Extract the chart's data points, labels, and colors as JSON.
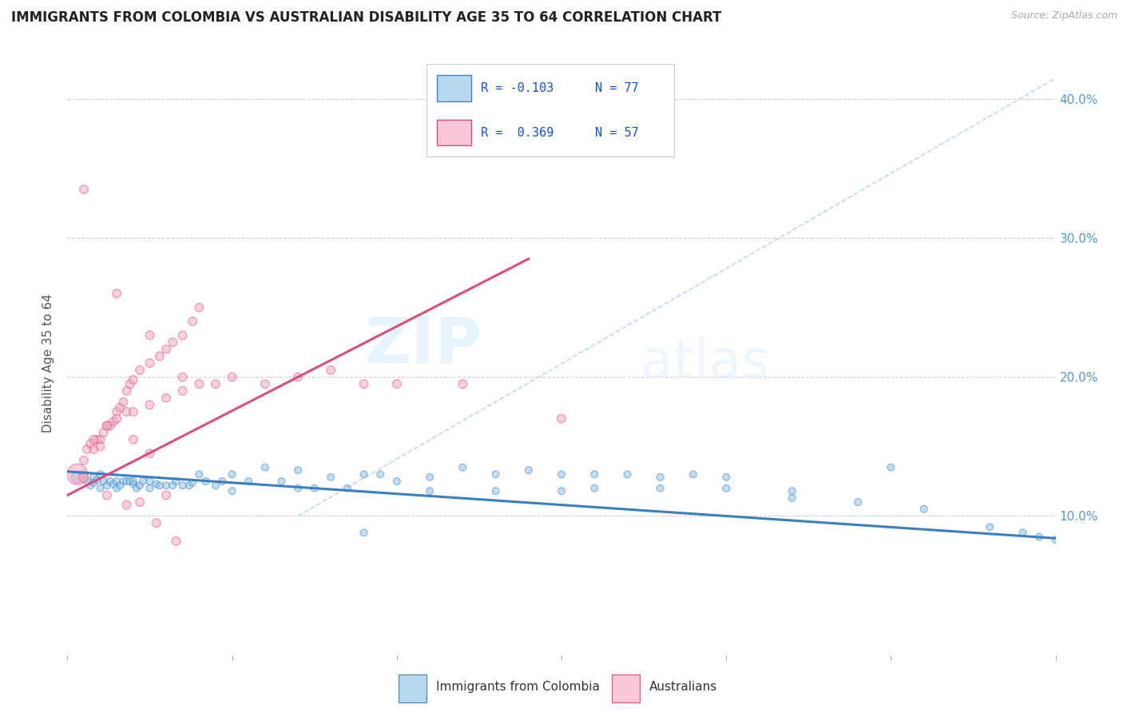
{
  "title": "IMMIGRANTS FROM COLOMBIA VS AUSTRALIAN DISABILITY AGE 35 TO 64 CORRELATION CHART",
  "source_text": "Source: ZipAtlas.com",
  "ylabel": "Disability Age 35 to 64",
  "xlim": [
    0.0,
    0.3
  ],
  "ylim": [
    0.0,
    0.42
  ],
  "color_blue": "#8ec4e8",
  "color_pink": "#f4a8be",
  "color_blue_line": "#3a7fc1",
  "color_pink_line": "#d94f7a",
  "color_blue_legend": "#b8d8f0",
  "color_pink_legend": "#f9c8d8",
  "watermark_zip": "ZIP",
  "watermark_atlas": "atlas",
  "legend_blue_label": "Immigrants from Colombia",
  "legend_pink_label": "Australians",
  "blue_line_x": [
    0.0,
    0.3
  ],
  "blue_line_y": [
    0.132,
    0.084
  ],
  "pink_line_x": [
    0.0,
    0.14
  ],
  "pink_line_y": [
    0.115,
    0.285
  ],
  "dashed_line_x": [
    0.07,
    0.3
  ],
  "dashed_line_y": [
    0.1,
    0.415
  ],
  "blue_x": [
    0.003,
    0.005,
    0.006,
    0.007,
    0.008,
    0.008,
    0.009,
    0.01,
    0.01,
    0.011,
    0.012,
    0.013,
    0.014,
    0.015,
    0.015,
    0.016,
    0.017,
    0.018,
    0.019,
    0.02,
    0.02,
    0.021,
    0.022,
    0.023,
    0.025,
    0.025,
    0.027,
    0.028,
    0.03,
    0.032,
    0.033,
    0.035,
    0.037,
    0.038,
    0.04,
    0.042,
    0.045,
    0.047,
    0.05,
    0.055,
    0.06,
    0.065,
    0.07,
    0.075,
    0.08,
    0.085,
    0.09,
    0.095,
    0.1,
    0.11,
    0.12,
    0.13,
    0.14,
    0.15,
    0.16,
    0.17,
    0.18,
    0.19,
    0.2,
    0.22,
    0.25,
    0.16,
    0.18,
    0.2,
    0.22,
    0.24,
    0.26,
    0.28,
    0.29,
    0.295,
    0.3,
    0.05,
    0.07,
    0.09,
    0.11,
    0.13,
    0.15
  ],
  "blue_y": [
    0.128,
    0.13,
    0.125,
    0.122,
    0.128,
    0.124,
    0.126,
    0.12,
    0.13,
    0.125,
    0.122,
    0.125,
    0.123,
    0.125,
    0.12,
    0.122,
    0.125,
    0.125,
    0.125,
    0.123,
    0.125,
    0.12,
    0.122,
    0.125,
    0.12,
    0.125,
    0.123,
    0.122,
    0.122,
    0.122,
    0.125,
    0.122,
    0.122,
    0.124,
    0.13,
    0.125,
    0.122,
    0.125,
    0.13,
    0.125,
    0.135,
    0.125,
    0.133,
    0.12,
    0.128,
    0.12,
    0.13,
    0.13,
    0.125,
    0.128,
    0.135,
    0.13,
    0.133,
    0.13,
    0.13,
    0.13,
    0.128,
    0.13,
    0.128,
    0.118,
    0.135,
    0.12,
    0.12,
    0.12,
    0.113,
    0.11,
    0.105,
    0.092,
    0.088,
    0.085,
    0.083,
    0.118,
    0.12,
    0.088,
    0.118,
    0.118,
    0.118
  ],
  "blue_sizes": [
    120,
    40,
    40,
    40,
    40,
    40,
    40,
    40,
    40,
    40,
    40,
    40,
    40,
    40,
    40,
    40,
    40,
    40,
    40,
    40,
    40,
    40,
    40,
    40,
    40,
    40,
    40,
    40,
    40,
    40,
    40,
    40,
    40,
    40,
    40,
    40,
    40,
    40,
    40,
    40,
    40,
    40,
    40,
    40,
    40,
    40,
    40,
    40,
    40,
    40,
    40,
    40,
    40,
    40,
    40,
    40,
    40,
    40,
    40,
    40,
    40,
    40,
    40,
    40,
    40,
    40,
    40,
    40,
    40,
    40,
    40,
    40,
    40,
    40,
    40,
    40,
    40
  ],
  "pink_x": [
    0.003,
    0.005,
    0.006,
    0.007,
    0.008,
    0.009,
    0.01,
    0.011,
    0.012,
    0.013,
    0.014,
    0.015,
    0.016,
    0.017,
    0.018,
    0.019,
    0.02,
    0.022,
    0.025,
    0.028,
    0.03,
    0.032,
    0.035,
    0.038,
    0.04,
    0.005,
    0.008,
    0.01,
    0.012,
    0.015,
    0.018,
    0.02,
    0.025,
    0.03,
    0.035,
    0.04,
    0.045,
    0.05,
    0.06,
    0.07,
    0.08,
    0.09,
    0.1,
    0.12,
    0.15,
    0.02,
    0.025,
    0.03,
    0.012,
    0.018,
    0.022,
    0.027,
    0.033,
    0.005,
    0.015,
    0.025,
    0.035
  ],
  "pink_y": [
    0.13,
    0.128,
    0.148,
    0.152,
    0.148,
    0.155,
    0.155,
    0.16,
    0.165,
    0.165,
    0.168,
    0.175,
    0.178,
    0.182,
    0.19,
    0.195,
    0.198,
    0.205,
    0.21,
    0.215,
    0.22,
    0.225,
    0.23,
    0.24,
    0.25,
    0.14,
    0.155,
    0.15,
    0.165,
    0.17,
    0.175,
    0.175,
    0.18,
    0.185,
    0.19,
    0.195,
    0.195,
    0.2,
    0.195,
    0.2,
    0.205,
    0.195,
    0.195,
    0.195,
    0.17,
    0.155,
    0.145,
    0.115,
    0.115,
    0.108,
    0.11,
    0.095,
    0.082,
    0.335,
    0.26,
    0.23,
    0.2
  ],
  "pink_sizes": [
    350,
    80,
    60,
    60,
    60,
    60,
    60,
    60,
    60,
    60,
    60,
    60,
    60,
    60,
    60,
    60,
    60,
    60,
    60,
    60,
    60,
    60,
    60,
    60,
    60,
    60,
    60,
    60,
    60,
    60,
    60,
    60,
    60,
    60,
    60,
    60,
    60,
    60,
    60,
    60,
    60,
    60,
    60,
    60,
    60,
    60,
    60,
    60,
    60,
    60,
    60,
    60,
    60,
    60,
    60,
    60,
    60
  ]
}
